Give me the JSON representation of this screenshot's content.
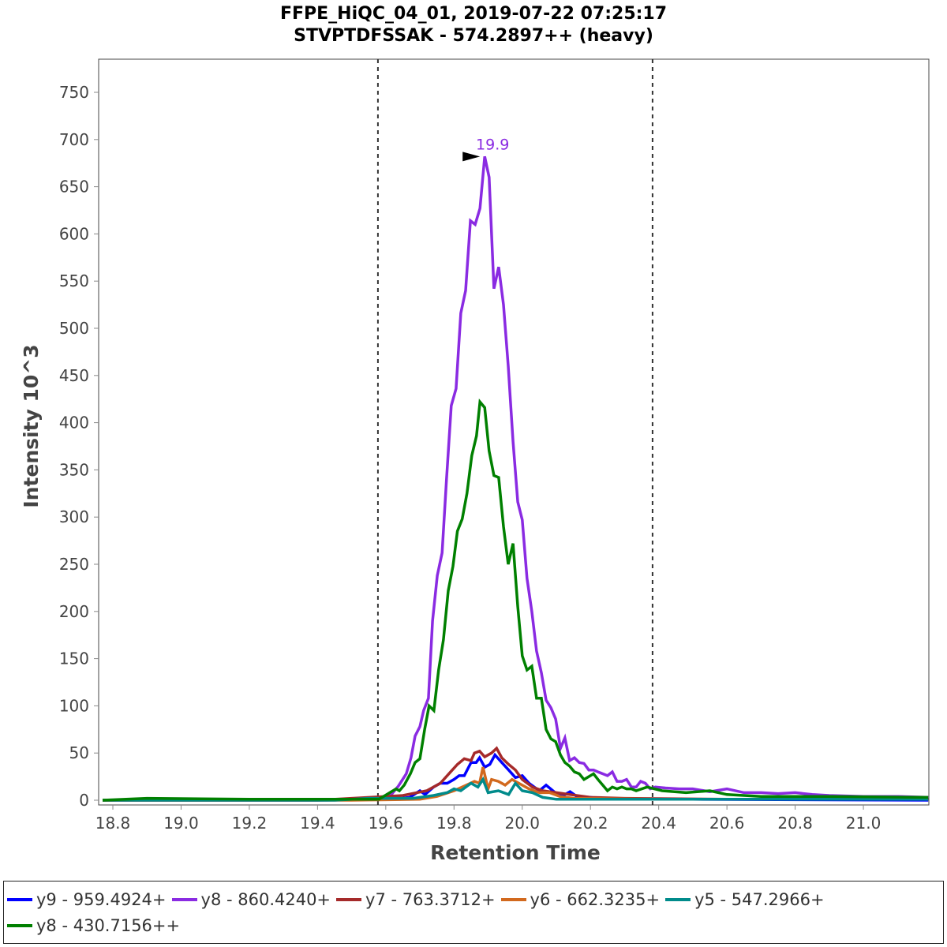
{
  "chart_data": {
    "type": "line",
    "title": [
      "FFPE_HiQC_04_01, 2019-07-22 07:25:17",
      "STVPTDFSSAK - 574.2897++ (heavy)"
    ],
    "xlabel": "Retention Time",
    "ylabel": "Intensity 10^3",
    "xlim": [
      18.77,
      21.19
    ],
    "ylim": [
      0,
      785
    ],
    "xticks": [
      "18.8",
      "19.0",
      "19.2",
      "19.4",
      "19.6",
      "19.8",
      "20.0",
      "20.2",
      "20.4",
      "20.6",
      "20.8",
      "21.0"
    ],
    "yticks": [
      "0",
      "50",
      "100",
      "150",
      "200",
      "250",
      "300",
      "350",
      "400",
      "450",
      "500",
      "550",
      "600",
      "650",
      "700",
      "750"
    ],
    "grid": false,
    "legend_position": "bottom",
    "boundaries": [
      19.577,
      20.382
    ],
    "annotation": {
      "label": "19.9",
      "x": 19.89,
      "y": 682,
      "color": "#8a2be2"
    },
    "series": [
      {
        "name": "y9 - 959.4924+",
        "color": "#0000ff",
        "points": [
          [
            18.77,
            0
          ],
          [
            19.0,
            0
          ],
          [
            19.4,
            0
          ],
          [
            19.62,
            1
          ],
          [
            19.67,
            3
          ],
          [
            19.7,
            10
          ],
          [
            19.715,
            6
          ],
          [
            19.74,
            14
          ],
          [
            19.76,
            18
          ],
          [
            19.78,
            18
          ],
          [
            19.8,
            22
          ],
          [
            19.815,
            26
          ],
          [
            19.83,
            26
          ],
          [
            19.85,
            40
          ],
          [
            19.865,
            40
          ],
          [
            19.875,
            45
          ],
          [
            19.89,
            35
          ],
          [
            19.905,
            38
          ],
          [
            19.92,
            48
          ],
          [
            19.94,
            40
          ],
          [
            19.96,
            32
          ],
          [
            19.98,
            24
          ],
          [
            20.0,
            26
          ],
          [
            20.02,
            18
          ],
          [
            20.05,
            10
          ],
          [
            20.07,
            16
          ],
          [
            20.1,
            7
          ],
          [
            20.12,
            5
          ],
          [
            20.14,
            9
          ],
          [
            20.16,
            4
          ],
          [
            20.2,
            3
          ],
          [
            20.25,
            1
          ],
          [
            20.5,
            1
          ],
          [
            21.19,
            0
          ]
        ]
      },
      {
        "name": "y8 - 860.4240+",
        "color": "#8a2be2",
        "points": [
          [
            18.77,
            0
          ],
          [
            19.0,
            1
          ],
          [
            19.3,
            1
          ],
          [
            19.5,
            1
          ],
          [
            19.58,
            2
          ],
          [
            19.614,
            5
          ],
          [
            19.637,
            15
          ],
          [
            19.66,
            28
          ],
          [
            19.674,
            45
          ],
          [
            19.686,
            68
          ],
          [
            19.7,
            78
          ],
          [
            19.711,
            95
          ],
          [
            19.725,
            108
          ],
          [
            19.737,
            190
          ],
          [
            19.751,
            238
          ],
          [
            19.765,
            262
          ],
          [
            19.778,
            340
          ],
          [
            19.792,
            418
          ],
          [
            19.806,
            436
          ],
          [
            19.82,
            516
          ],
          [
            19.834,
            540
          ],
          [
            19.848,
            614
          ],
          [
            19.862,
            610
          ],
          [
            19.876,
            627
          ],
          [
            19.89,
            682
          ],
          [
            19.903,
            660
          ],
          [
            19.917,
            542
          ],
          [
            19.931,
            565
          ],
          [
            19.945,
            525
          ],
          [
            19.959,
            460
          ],
          [
            19.973,
            380
          ],
          [
            19.987,
            316
          ],
          [
            20.0,
            297
          ],
          [
            20.014,
            235
          ],
          [
            20.028,
            200
          ],
          [
            20.042,
            158
          ],
          [
            20.056,
            135
          ],
          [
            20.07,
            106
          ],
          [
            20.084,
            98
          ],
          [
            20.098,
            86
          ],
          [
            20.112,
            55
          ],
          [
            20.125,
            66
          ],
          [
            20.139,
            42
          ],
          [
            20.153,
            45
          ],
          [
            20.167,
            40
          ],
          [
            20.181,
            39
          ],
          [
            20.195,
            32
          ],
          [
            20.209,
            32
          ],
          [
            20.222,
            30
          ],
          [
            20.236,
            28
          ],
          [
            20.25,
            26
          ],
          [
            20.264,
            30
          ],
          [
            20.278,
            20
          ],
          [
            20.292,
            20
          ],
          [
            20.306,
            22
          ],
          [
            20.32,
            14
          ],
          [
            20.334,
            14
          ],
          [
            20.347,
            20
          ],
          [
            20.361,
            18
          ],
          [
            20.375,
            12
          ],
          [
            20.39,
            14
          ],
          [
            20.42,
            13
          ],
          [
            20.46,
            12
          ],
          [
            20.5,
            12
          ],
          [
            20.55,
            9
          ],
          [
            20.6,
            12
          ],
          [
            20.65,
            8
          ],
          [
            20.7,
            8
          ],
          [
            20.75,
            7
          ],
          [
            20.8,
            8
          ],
          [
            20.85,
            6
          ],
          [
            20.9,
            5
          ],
          [
            21.0,
            4
          ],
          [
            21.1,
            4
          ],
          [
            21.19,
            3
          ]
        ]
      },
      {
        "name": "y7 - 763.3712+",
        "color": "#a52a2a",
        "points": [
          [
            18.77,
            0
          ],
          [
            19.4,
            0
          ],
          [
            19.65,
            5
          ],
          [
            19.72,
            10
          ],
          [
            19.76,
            18
          ],
          [
            19.79,
            30
          ],
          [
            19.81,
            38
          ],
          [
            19.83,
            44
          ],
          [
            19.85,
            42
          ],
          [
            19.86,
            50
          ],
          [
            19.875,
            52
          ],
          [
            19.89,
            46
          ],
          [
            19.91,
            50
          ],
          [
            19.925,
            55
          ],
          [
            19.94,
            45
          ],
          [
            19.96,
            38
          ],
          [
            19.98,
            32
          ],
          [
            20.0,
            22
          ],
          [
            20.03,
            14
          ],
          [
            20.06,
            10
          ],
          [
            20.1,
            8
          ],
          [
            20.14,
            6
          ],
          [
            20.2,
            3
          ],
          [
            20.3,
            2
          ],
          [
            20.6,
            1
          ],
          [
            21.19,
            1
          ]
        ]
      },
      {
        "name": "y6 - 662.3235+",
        "color": "#d2691e",
        "points": [
          [
            18.77,
            0
          ],
          [
            19.5,
            0
          ],
          [
            19.7,
            1
          ],
          [
            19.75,
            4
          ],
          [
            19.8,
            10
          ],
          [
            19.83,
            15
          ],
          [
            19.86,
            20
          ],
          [
            19.875,
            18
          ],
          [
            19.885,
            35
          ],
          [
            19.9,
            12
          ],
          [
            19.91,
            22
          ],
          [
            19.93,
            20
          ],
          [
            19.95,
            16
          ],
          [
            19.97,
            22
          ],
          [
            19.99,
            18
          ],
          [
            20.02,
            12
          ],
          [
            20.05,
            8
          ],
          [
            20.08,
            8
          ],
          [
            20.11,
            4
          ],
          [
            20.15,
            2
          ],
          [
            20.4,
            1
          ],
          [
            21.19,
            1
          ]
        ]
      },
      {
        "name": "y5 - 547.2966+",
        "color": "#008b8b",
        "points": [
          [
            18.77,
            0
          ],
          [
            19.45,
            0
          ],
          [
            19.55,
            2
          ],
          [
            19.68,
            2
          ],
          [
            19.74,
            5
          ],
          [
            19.78,
            8
          ],
          [
            19.8,
            12
          ],
          [
            19.82,
            10
          ],
          [
            19.85,
            18
          ],
          [
            19.87,
            14
          ],
          [
            19.885,
            22
          ],
          [
            19.9,
            8
          ],
          [
            19.93,
            10
          ],
          [
            19.96,
            6
          ],
          [
            19.98,
            18
          ],
          [
            20.0,
            10
          ],
          [
            20.03,
            8
          ],
          [
            20.06,
            3
          ],
          [
            20.1,
            1
          ],
          [
            20.5,
            1
          ],
          [
            21.19,
            1
          ]
        ]
      },
      {
        "name": "y8 - 430.7156++",
        "color": "#008000",
        "points": [
          [
            18.77,
            0
          ],
          [
            18.9,
            2
          ],
          [
            19.2,
            1
          ],
          [
            19.5,
            1
          ],
          [
            19.58,
            1
          ],
          [
            19.63,
            12
          ],
          [
            19.64,
            10
          ],
          [
            19.654,
            16
          ],
          [
            19.672,
            28
          ],
          [
            19.686,
            40
          ],
          [
            19.7,
            44
          ],
          [
            19.714,
            75
          ],
          [
            19.727,
            100
          ],
          [
            19.741,
            95
          ],
          [
            19.755,
            138
          ],
          [
            19.769,
            170
          ],
          [
            19.783,
            222
          ],
          [
            19.797,
            248
          ],
          [
            19.81,
            285
          ],
          [
            19.824,
            298
          ],
          [
            19.838,
            325
          ],
          [
            19.852,
            365
          ],
          [
            19.866,
            386
          ],
          [
            19.876,
            422
          ],
          [
            19.89,
            416
          ],
          [
            19.903,
            370
          ],
          [
            19.917,
            344
          ],
          [
            19.931,
            342
          ],
          [
            19.945,
            290
          ],
          [
            19.959,
            250
          ],
          [
            19.973,
            272
          ],
          [
            19.987,
            205
          ],
          [
            20.0,
            153
          ],
          [
            20.014,
            138
          ],
          [
            20.028,
            142
          ],
          [
            20.042,
            108
          ],
          [
            20.056,
            108
          ],
          [
            20.07,
            75
          ],
          [
            20.084,
            65
          ],
          [
            20.098,
            62
          ],
          [
            20.112,
            48
          ],
          [
            20.125,
            40
          ],
          [
            20.139,
            36
          ],
          [
            20.153,
            30
          ],
          [
            20.167,
            28
          ],
          [
            20.181,
            22
          ],
          [
            20.195,
            25
          ],
          [
            20.209,
            28
          ],
          [
            20.222,
            22
          ],
          [
            20.236,
            16
          ],
          [
            20.25,
            10
          ],
          [
            20.264,
            14
          ],
          [
            20.278,
            12
          ],
          [
            20.292,
            14
          ],
          [
            20.306,
            12
          ],
          [
            20.32,
            12
          ],
          [
            20.334,
            10
          ],
          [
            20.366,
            14
          ],
          [
            20.41,
            10
          ],
          [
            20.48,
            8
          ],
          [
            20.55,
            10
          ],
          [
            20.6,
            6
          ],
          [
            20.7,
            4
          ],
          [
            20.9,
            4
          ],
          [
            21.19,
            3
          ]
        ]
      }
    ]
  }
}
